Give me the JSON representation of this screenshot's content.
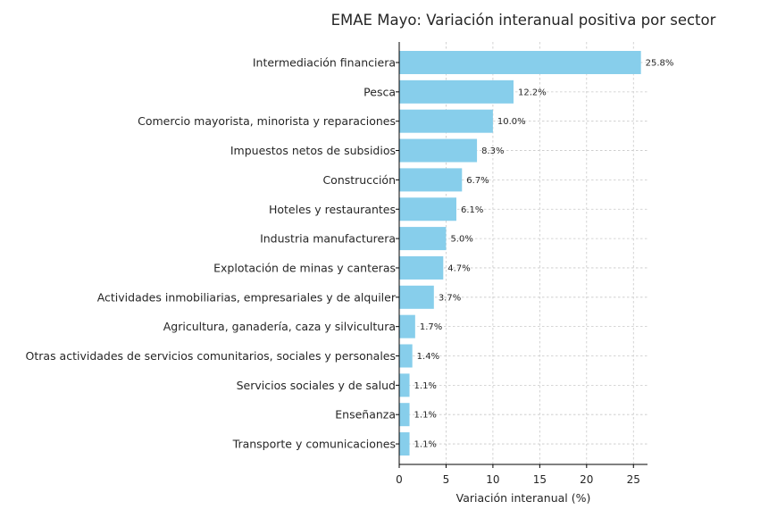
{
  "chart_data": {
    "type": "bar",
    "orientation": "horizontal",
    "title": "EMAE Mayo: Variación interanual positiva por sector",
    "xlabel": "Variación interanual (%)",
    "ylabel": "",
    "xlim": [
      0,
      26.5
    ],
    "xticks": [
      0,
      5,
      10,
      15,
      20,
      25
    ],
    "grid": true,
    "bar_color": "#87ceeb",
    "categories": [
      "Intermediación financiera",
      "Pesca",
      "Comercio mayorista, minorista y reparaciones",
      "Impuestos netos de subsidios",
      "Construcción",
      "Hoteles y restaurantes",
      "Industria manufacturera",
      "Explotación de minas y canteras",
      "Actividades inmobiliarias, empresariales y de alquiler",
      "Agricultura, ganadería, caza y silvicultura",
      "Otras actividades de servicios comunitarios, sociales y personales",
      "Servicios sociales y de salud",
      "Enseñanza",
      "Transporte y comunicaciones"
    ],
    "values": [
      25.8,
      12.2,
      10.0,
      8.3,
      6.7,
      6.1,
      5.0,
      4.7,
      3.7,
      1.7,
      1.4,
      1.1,
      1.1,
      1.1
    ],
    "value_labels": [
      "25.8%",
      "12.2%",
      "10.0%",
      "8.3%",
      "6.7%",
      "6.1%",
      "5.0%",
      "4.7%",
      "3.7%",
      "1.7%",
      "1.4%",
      "1.1%",
      "1.1%",
      "1.1%"
    ]
  }
}
